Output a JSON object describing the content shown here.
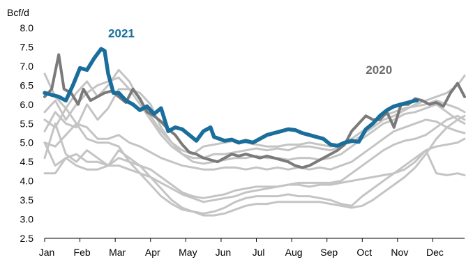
{
  "chart_data": {
    "type": "line",
    "title": "",
    "ylabel": "Bcf/d",
    "ylim": [
      2.5,
      8.0
    ],
    "yticks": [
      "2.5",
      "3.0",
      "3.5",
      "4.0",
      "4.5",
      "5.0",
      "5.5",
      "6.0",
      "6.5",
      "7.0",
      "7.5",
      "8.0"
    ],
    "xlim": [
      1,
      12.9
    ],
    "xticks": [
      "Jan",
      "Feb",
      "Mar",
      "Apr",
      "May",
      "Jun",
      "Jul",
      "Aug",
      "Sep",
      "Oct",
      "Nov",
      "Dec"
    ],
    "grid": false,
    "legend": "none",
    "annotations": [
      {
        "text": "2021",
        "x": 2.8,
        "y": 7.75,
        "color": "#1a6e9c"
      },
      {
        "text": "2020",
        "x": 10.1,
        "y": 6.8,
        "color": "#6e6e6e"
      }
    ],
    "series": [
      {
        "name": "2021",
        "color": "#1a6e9c",
        "width": 5.5,
        "x": [
          1,
          1.2,
          1.4,
          1.6,
          1.8,
          2,
          2.2,
          2.4,
          2.6,
          2.7,
          2.8,
          2.95,
          3.1,
          3.3,
          3.5,
          3.7,
          3.9,
          4.1,
          4.3,
          4.5,
          4.7,
          4.9,
          5.1,
          5.3,
          5.5,
          5.7,
          5.8,
          5.95,
          6.1,
          6.3,
          6.5,
          6.7,
          6.9,
          7.1,
          7.3,
          7.5,
          7.7,
          7.9,
          8.1,
          8.3,
          8.5,
          8.7,
          8.9,
          9.1,
          9.3,
          9.5,
          9.7,
          9.9,
          10.1,
          10.3,
          10.5,
          10.7,
          10.9,
          11.1,
          11.3,
          11.5,
          11.55
        ],
        "y": [
          6.3,
          6.25,
          6.2,
          6.1,
          6.5,
          6.95,
          6.9,
          7.2,
          7.45,
          7.4,
          6.8,
          6.3,
          6.3,
          6.1,
          6.0,
          5.85,
          5.95,
          5.75,
          5.9,
          5.3,
          5.4,
          5.35,
          5.2,
          5.05,
          5.3,
          5.4,
          5.15,
          5.1,
          5.05,
          5.08,
          5.0,
          5.05,
          5.0,
          5.1,
          5.2,
          5.25,
          5.3,
          5.35,
          5.33,
          5.25,
          5.2,
          5.15,
          5.1,
          4.95,
          4.92,
          5.0,
          5.05,
          5.02,
          5.35,
          5.5,
          5.7,
          5.85,
          5.95,
          6.0,
          6.05,
          6.1,
          6.1
        ]
      },
      {
        "name": "2020",
        "color": "#7a7a7a",
        "width": 4,
        "x": [
          1,
          1.2,
          1.4,
          1.55,
          1.75,
          1.95,
          2.1,
          2.3,
          2.5,
          2.7,
          2.9,
          3.1,
          3.3,
          3.5,
          3.7,
          3.9,
          4.1,
          4.3,
          4.5,
          4.7,
          4.9,
          5.1,
          5.3,
          5.5,
          5.7,
          5.9,
          6.1,
          6.3,
          6.5,
          6.7,
          6.9,
          7.1,
          7.3,
          7.5,
          7.7,
          7.9,
          8.1,
          8.3,
          8.5,
          8.7,
          8.9,
          9.1,
          9.3,
          9.5,
          9.7,
          9.9,
          10.1,
          10.3,
          10.5,
          10.7,
          10.9,
          11.1,
          11.3,
          11.5,
          11.7,
          11.9,
          12.1,
          12.3,
          12.5,
          12.7,
          12.9
        ],
        "y": [
          6.2,
          6.4,
          7.3,
          6.4,
          6.3,
          6.0,
          6.4,
          6.1,
          6.2,
          6.3,
          6.35,
          6.2,
          6.05,
          6.4,
          6.15,
          5.8,
          5.7,
          5.55,
          5.35,
          5.2,
          4.95,
          4.75,
          4.7,
          4.6,
          4.55,
          4.5,
          4.6,
          4.7,
          4.65,
          4.7,
          4.65,
          4.6,
          4.65,
          4.6,
          4.55,
          4.5,
          4.4,
          4.35,
          4.4,
          4.5,
          4.6,
          4.7,
          4.8,
          4.95,
          5.3,
          5.5,
          5.7,
          5.6,
          5.6,
          5.8,
          5.4,
          6.0,
          6.0,
          6.15,
          6.1,
          6.0,
          6.05,
          5.95,
          6.3,
          6.55,
          6.2
        ]
      },
      {
        "name": "",
        "color": "#c4c4c4",
        "width": 3,
        "x": [
          1,
          1.3,
          1.6,
          1.9,
          2.2,
          2.5,
          2.8,
          3.1,
          3.4,
          3.7,
          4.0,
          4.3,
          4.6,
          4.9,
          5.2,
          5.5,
          5.8,
          6.1,
          6.4,
          6.7,
          7.0,
          7.3,
          7.6,
          7.9,
          8.2,
          8.5,
          8.8,
          9.1,
          9.4,
          9.7,
          10.0,
          10.3,
          10.6,
          10.9,
          11.2,
          11.5,
          11.8,
          12.1,
          12.4,
          12.7,
          12.9
        ],
        "y": [
          6.8,
          6.2,
          5.9,
          6.3,
          6.6,
          6.2,
          6.5,
          6.9,
          6.6,
          6.1,
          5.7,
          5.3,
          5.0,
          4.8,
          4.7,
          4.9,
          4.95,
          5.0,
          5.05,
          5.0,
          4.95,
          4.9,
          4.9,
          4.95,
          4.95,
          5.0,
          4.95,
          4.9,
          4.95,
          5.0,
          5.2,
          5.4,
          5.6,
          5.7,
          5.85,
          6.0,
          6.1,
          6.2,
          6.3,
          6.5,
          6.75
        ]
      },
      {
        "name": "",
        "color": "#c4c4c4",
        "width": 3,
        "x": [
          1,
          1.3,
          1.6,
          1.9,
          2.2,
          2.5,
          2.8,
          3.1,
          3.4,
          3.7,
          4.0,
          4.3,
          4.6,
          4.9,
          5.2,
          5.5,
          5.8,
          6.1,
          6.4,
          6.7,
          7.0,
          7.3,
          7.6,
          7.9,
          8.2,
          8.5,
          8.8,
          9.1,
          9.4,
          9.7,
          10.0,
          10.3,
          10.6,
          10.9,
          11.2,
          11.5,
          11.8,
          12.1,
          12.4,
          12.7,
          12.9
        ],
        "y": [
          5.8,
          6.1,
          5.6,
          6.0,
          6.3,
          6.5,
          6.6,
          6.7,
          6.4,
          6.0,
          5.6,
          5.2,
          4.9,
          4.7,
          4.6,
          4.6,
          4.7,
          4.7,
          4.75,
          4.8,
          4.85,
          4.8,
          4.85,
          4.8,
          4.9,
          4.9,
          4.85,
          4.8,
          4.9,
          5.1,
          5.3,
          5.5,
          5.7,
          5.8,
          5.9,
          5.95,
          6.0,
          6.1,
          6.0,
          5.9,
          5.8
        ]
      },
      {
        "name": "",
        "color": "#c4c4c4",
        "width": 3,
        "x": [
          1,
          1.3,
          1.6,
          1.9,
          2.2,
          2.5,
          2.8,
          3.1,
          3.4,
          3.7,
          4.0,
          4.3,
          4.6,
          4.9,
          5.2,
          5.5,
          5.8,
          6.1,
          6.4,
          6.7,
          7.0,
          7.3,
          7.6,
          7.9,
          8.2,
          8.5,
          8.8,
          9.1,
          9.4,
          9.7,
          10.0,
          10.3,
          10.6,
          10.9,
          11.2,
          11.5,
          11.8,
          12.1,
          12.4,
          12.7,
          12.9
        ],
        "y": [
          5.3,
          5.8,
          5.5,
          5.4,
          6.0,
          5.6,
          5.9,
          6.4,
          6.4,
          6.3,
          6.0,
          5.4,
          5.0,
          4.7,
          4.5,
          4.45,
          4.5,
          4.55,
          4.6,
          4.6,
          4.65,
          4.6,
          4.6,
          4.55,
          4.6,
          4.6,
          4.55,
          4.6,
          4.7,
          4.9,
          5.1,
          5.3,
          5.5,
          5.6,
          5.75,
          5.8,
          5.9,
          6.0,
          5.8,
          5.6,
          5.5
        ]
      },
      {
        "name": "",
        "color": "#c4c4c4",
        "width": 3,
        "x": [
          1,
          1.3,
          1.6,
          1.9,
          2.2,
          2.5,
          2.8,
          3.1,
          3.4,
          3.7,
          4.0,
          4.3,
          4.6,
          4.9,
          5.2,
          5.5,
          5.8,
          6.1,
          6.4,
          6.7,
          7.0,
          7.3,
          7.6,
          7.9,
          8.2,
          8.5,
          8.8,
          9.1,
          9.4,
          9.7,
          10.0,
          10.3,
          10.6,
          10.9,
          11.2,
          11.5,
          11.8,
          12.1,
          12.4,
          12.7,
          12.9
        ],
        "y": [
          5.0,
          4.9,
          5.2,
          5.5,
          5.4,
          5.1,
          5.1,
          5.2,
          5.0,
          4.9,
          4.75,
          4.6,
          4.5,
          4.4,
          4.35,
          4.3,
          4.3,
          4.35,
          4.35,
          4.3,
          4.35,
          4.3,
          4.35,
          4.3,
          4.35,
          4.3,
          4.35,
          4.3,
          4.4,
          4.5,
          4.7,
          4.9,
          5.1,
          5.3,
          5.4,
          5.5,
          5.6,
          5.55,
          5.4,
          5.3,
          5.25
        ]
      },
      {
        "name": "",
        "color": "#c4c4c4",
        "width": 3,
        "x": [
          1,
          1.3,
          1.6,
          1.9,
          2.2,
          2.5,
          2.8,
          3.1,
          3.4,
          3.7,
          4.0,
          4.3,
          4.6,
          4.9,
          5.2,
          5.5,
          5.8,
          6.1,
          6.4,
          6.7,
          7.0,
          7.3,
          7.6,
          7.9,
          8.2,
          8.5,
          8.8,
          9.1,
          9.4,
          9.7,
          10.0,
          10.3,
          10.6,
          10.9,
          11.2,
          11.5,
          11.8,
          12.1,
          12.4,
          12.7,
          12.9
        ],
        "y": [
          4.6,
          5.5,
          4.7,
          4.5,
          4.8,
          4.6,
          4.4,
          4.6,
          4.5,
          4.4,
          4.3,
          4.1,
          3.9,
          3.7,
          3.6,
          3.55,
          3.6,
          3.65,
          3.75,
          3.8,
          3.85,
          3.85,
          3.85,
          3.9,
          3.95,
          3.95,
          3.95,
          3.95,
          4.0,
          4.2,
          4.4,
          4.6,
          4.8,
          4.95,
          5.05,
          5.1,
          5.2,
          5.4,
          5.6,
          5.7,
          5.6
        ]
      },
      {
        "name": "",
        "color": "#c4c4c4",
        "width": 3,
        "x": [
          1,
          1.3,
          1.6,
          1.9,
          2.2,
          2.5,
          2.8,
          3.1,
          3.4,
          3.7,
          4.0,
          4.3,
          4.6,
          4.9,
          5.2,
          5.5,
          5.8,
          6.1,
          6.4,
          6.7,
          7.0,
          7.3,
          7.6,
          7.9,
          8.2,
          8.5,
          8.8,
          9.1,
          9.4,
          9.7,
          10.0,
          10.3,
          10.6,
          10.9,
          11.2,
          11.5,
          11.8,
          12.1,
          12.4,
          12.7,
          12.9
        ],
        "y": [
          4.2,
          4.2,
          4.6,
          4.4,
          4.3,
          4.3,
          4.4,
          4.4,
          4.3,
          4.2,
          4.1,
          3.95,
          3.8,
          3.65,
          3.55,
          3.45,
          3.5,
          3.55,
          3.6,
          3.7,
          3.75,
          3.8,
          3.85,
          3.9,
          3.9,
          3.85,
          3.9,
          3.9,
          3.95,
          4.0,
          4.05,
          4.1,
          4.15,
          4.2,
          4.3,
          4.5,
          4.8,
          4.2,
          4.15,
          4.2,
          4.15
        ]
      },
      {
        "name": "",
        "color": "#c4c4c4",
        "width": 3,
        "x": [
          1,
          1.3,
          1.6,
          1.9,
          2.2,
          2.5,
          2.8,
          3.1,
          3.4,
          3.7,
          4.0,
          4.3,
          4.6,
          4.9,
          5.2,
          5.5,
          5.8,
          6.1,
          6.4,
          6.7,
          7.0,
          7.3,
          7.6,
          7.9,
          8.2,
          8.5,
          8.8,
          9.1,
          9.4,
          9.7,
          10.0,
          10.3,
          10.6,
          10.9,
          11.2,
          11.5,
          11.8,
          12.1,
          12.4,
          12.7,
          12.9
        ],
        "y": [
          5.0,
          4.4,
          4.6,
          4.7,
          4.5,
          4.5,
          4.4,
          4.8,
          4.6,
          4.4,
          4.1,
          3.8,
          3.5,
          3.3,
          3.2,
          3.15,
          3.2,
          3.3,
          3.45,
          3.55,
          3.6,
          3.6,
          3.6,
          3.65,
          3.6,
          3.6,
          3.55,
          3.5,
          3.4,
          3.35,
          3.6,
          3.8,
          4.0,
          4.2,
          4.4,
          4.6,
          4.8,
          4.9,
          4.95,
          5.0,
          5.1
        ]
      },
      {
        "name": "",
        "color": "#c4c4c4",
        "width": 3,
        "x": [
          1,
          1.3,
          1.6,
          1.9,
          2.2,
          2.5,
          2.8,
          3.1,
          3.4,
          3.7,
          4.0,
          4.3,
          4.6,
          4.9,
          5.2,
          5.5,
          5.8,
          6.1,
          6.4,
          6.7,
          7.0,
          7.3,
          7.6,
          7.9,
          8.2,
          8.5,
          8.8,
          9.1,
          9.4,
          9.7,
          10.0,
          10.3,
          10.6,
          10.9,
          11.2,
          11.5,
          11.8,
          12.1,
          12.4,
          12.7,
          12.9
        ],
        "y": [
          5.6,
          5.4,
          5.9,
          5.5,
          5.1,
          5.0,
          5.0,
          4.9,
          4.5,
          4.2,
          3.9,
          3.6,
          3.4,
          3.25,
          3.2,
          3.1,
          3.1,
          3.15,
          3.25,
          3.35,
          3.4,
          3.4,
          3.45,
          3.45,
          3.45,
          3.45,
          3.45,
          3.4,
          3.35,
          3.3,
          3.35,
          3.5,
          3.7,
          3.9,
          4.1,
          4.35,
          4.7,
          5.1,
          5.4,
          5.6,
          5.7
        ]
      }
    ]
  }
}
